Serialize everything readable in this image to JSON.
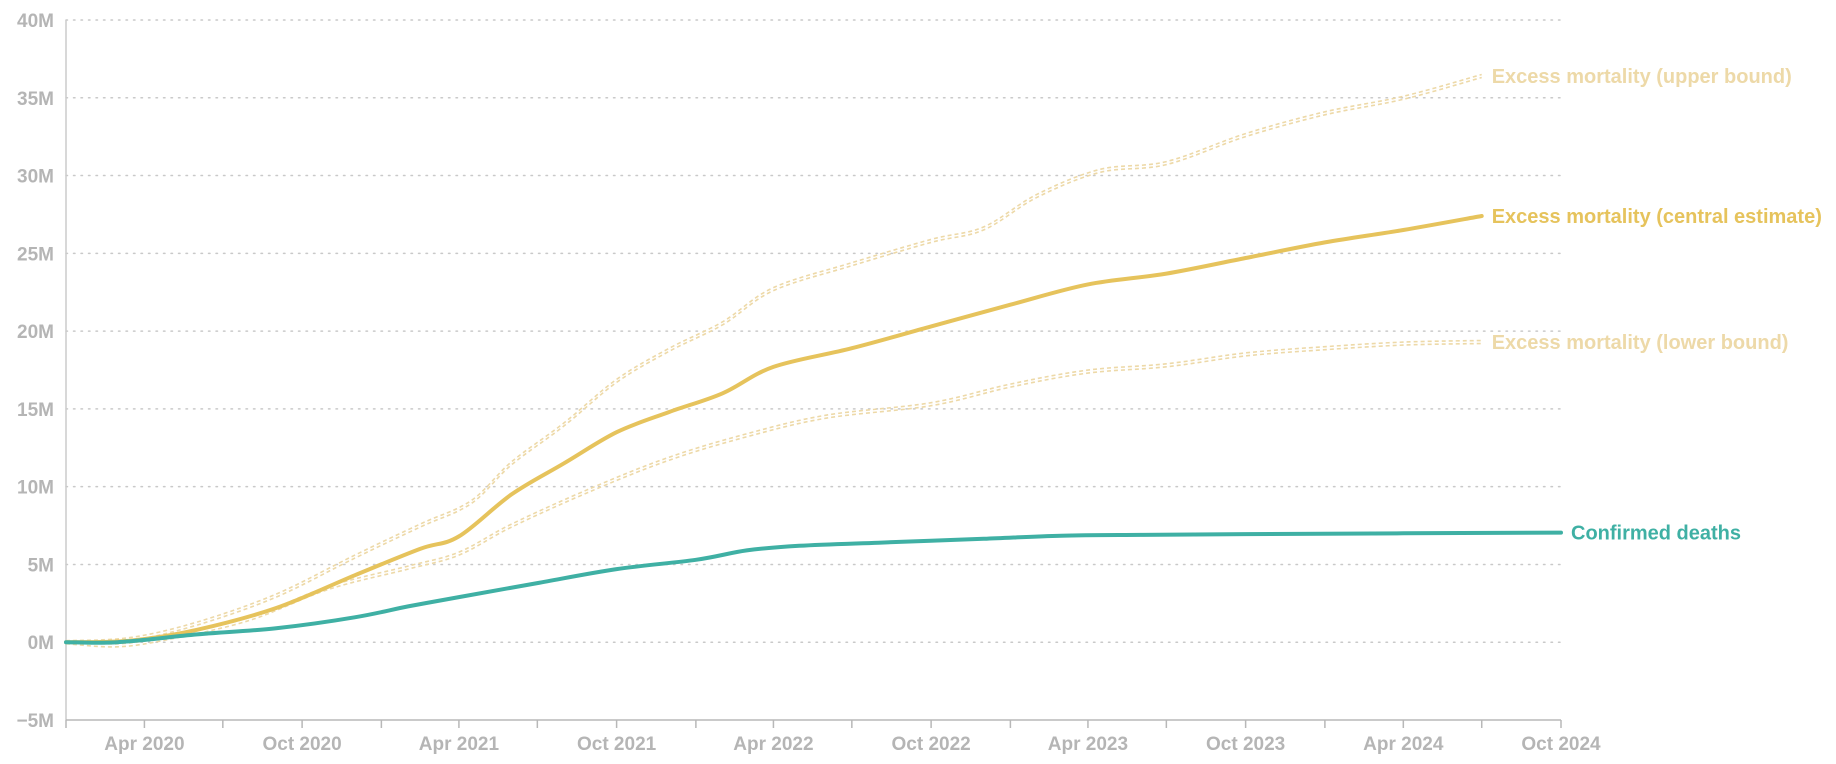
{
  "chart_data": {
    "type": "line",
    "title": "",
    "xlabel": "",
    "ylabel": "",
    "ylim": [
      -5000000,
      40000000
    ],
    "xlim": [
      "2020-01-01",
      "2024-10-01"
    ],
    "grid": true,
    "y_ticks": [
      {
        "value": 40000000,
        "label": "40M"
      },
      {
        "value": 35000000,
        "label": "35M"
      },
      {
        "value": 30000000,
        "label": "30M"
      },
      {
        "value": 25000000,
        "label": "25M"
      },
      {
        "value": 20000000,
        "label": "20M"
      },
      {
        "value": 15000000,
        "label": "15M"
      },
      {
        "value": 10000000,
        "label": "10M"
      },
      {
        "value": 5000000,
        "label": "5M"
      },
      {
        "value": 0,
        "label": "0M"
      },
      {
        "value": -5000000,
        "label": "−5M"
      }
    ],
    "x_ticks": [
      {
        "value": "2020-04-01",
        "label": "Apr 2020"
      },
      {
        "value": "2020-10-01",
        "label": "Oct 2020"
      },
      {
        "value": "2021-04-01",
        "label": "Apr 2021"
      },
      {
        "value": "2021-10-01",
        "label": "Oct 2021"
      },
      {
        "value": "2022-04-01",
        "label": "Apr 2022"
      },
      {
        "value": "2022-10-01",
        "label": "Oct 2022"
      },
      {
        "value": "2023-04-01",
        "label": "Apr 2023"
      },
      {
        "value": "2023-10-01",
        "label": "Oct 2023"
      },
      {
        "value": "2024-04-01",
        "label": "Apr 2024"
      },
      {
        "value": "2024-10-01",
        "label": "Oct 2024"
      }
    ],
    "series": [
      {
        "name": "Excess mortality (upper bound)",
        "color": "#edd9a8",
        "dashed": true,
        "points": [
          [
            "2020-01-01",
            0
          ],
          [
            "2020-03-15",
            200000
          ],
          [
            "2020-06-01",
            1200000
          ],
          [
            "2020-09-01",
            3000000
          ],
          [
            "2020-12-01",
            5500000
          ],
          [
            "2021-02-15",
            7500000
          ],
          [
            "2021-04-15",
            9000000
          ],
          [
            "2021-06-01",
            11500000
          ],
          [
            "2021-08-01",
            14000000
          ],
          [
            "2021-10-01",
            16800000
          ],
          [
            "2021-12-01",
            18800000
          ],
          [
            "2022-02-01",
            20500000
          ],
          [
            "2022-04-01",
            22700000
          ],
          [
            "2022-07-01",
            24300000
          ],
          [
            "2022-10-01",
            25800000
          ],
          [
            "2022-12-01",
            26600000
          ],
          [
            "2023-02-01",
            28700000
          ],
          [
            "2023-04-15",
            30300000
          ],
          [
            "2023-07-01",
            30800000
          ],
          [
            "2023-10-01",
            32600000
          ],
          [
            "2024-01-01",
            34000000
          ],
          [
            "2024-04-01",
            35000000
          ],
          [
            "2024-07-01",
            36400000
          ]
        ]
      },
      {
        "name": "Excess mortality (central estimate)",
        "color": "#e6c35c",
        "dashed": false,
        "points": [
          [
            "2020-01-01",
            0
          ],
          [
            "2020-03-15",
            100000
          ],
          [
            "2020-06-01",
            800000
          ],
          [
            "2020-09-01",
            2200000
          ],
          [
            "2020-12-01",
            4300000
          ],
          [
            "2021-02-15",
            6000000
          ],
          [
            "2021-04-01",
            6800000
          ],
          [
            "2021-06-01",
            9500000
          ],
          [
            "2021-08-01",
            11500000
          ],
          [
            "2021-10-01",
            13500000
          ],
          [
            "2021-12-01",
            14800000
          ],
          [
            "2022-02-01",
            16000000
          ],
          [
            "2022-04-01",
            17700000
          ],
          [
            "2022-07-01",
            18900000
          ],
          [
            "2022-10-01",
            20300000
          ],
          [
            "2023-01-01",
            21700000
          ],
          [
            "2023-04-01",
            23000000
          ],
          [
            "2023-07-01",
            23700000
          ],
          [
            "2023-10-01",
            24700000
          ],
          [
            "2024-01-01",
            25700000
          ],
          [
            "2024-04-01",
            26500000
          ],
          [
            "2024-07-01",
            27400000
          ]
        ]
      },
      {
        "name": "Excess mortality (lower bound)",
        "color": "#edd9a8",
        "dashed": true,
        "points": [
          [
            "2020-01-01",
            0
          ],
          [
            "2020-03-01",
            -200000
          ],
          [
            "2020-05-01",
            300000
          ],
          [
            "2020-08-01",
            1500000
          ],
          [
            "2020-11-01",
            3500000
          ],
          [
            "2021-02-01",
            4800000
          ],
          [
            "2021-04-01",
            5700000
          ],
          [
            "2021-06-01",
            7500000
          ],
          [
            "2021-09-01",
            9800000
          ],
          [
            "2021-12-01",
            11800000
          ],
          [
            "2022-03-01",
            13300000
          ],
          [
            "2022-06-01",
            14500000
          ],
          [
            "2022-10-01",
            15300000
          ],
          [
            "2023-01-01",
            16500000
          ],
          [
            "2023-04-01",
            17400000
          ],
          [
            "2023-07-01",
            17800000
          ],
          [
            "2023-10-01",
            18500000
          ],
          [
            "2024-01-01",
            18900000
          ],
          [
            "2024-04-01",
            19200000
          ],
          [
            "2024-07-01",
            19300000
          ]
        ]
      },
      {
        "name": "Confirmed deaths",
        "color": "#3fb0a4",
        "dashed": false,
        "points": [
          [
            "2020-01-01",
            0
          ],
          [
            "2020-03-01",
            0
          ],
          [
            "2020-06-01",
            500000
          ],
          [
            "2020-09-01",
            900000
          ],
          [
            "2020-12-01",
            1600000
          ],
          [
            "2021-02-01",
            2300000
          ],
          [
            "2021-04-01",
            2900000
          ],
          [
            "2021-07-01",
            3800000
          ],
          [
            "2021-10-01",
            4700000
          ],
          [
            "2022-01-01",
            5300000
          ],
          [
            "2022-03-01",
            5900000
          ],
          [
            "2022-05-01",
            6200000
          ],
          [
            "2022-08-01",
            6400000
          ],
          [
            "2022-12-01",
            6650000
          ],
          [
            "2023-03-01",
            6850000
          ],
          [
            "2023-06-01",
            6900000
          ],
          [
            "2023-10-01",
            6950000
          ],
          [
            "2024-04-01",
            7000000
          ],
          [
            "2024-10-01",
            7050000
          ]
        ]
      }
    ]
  }
}
